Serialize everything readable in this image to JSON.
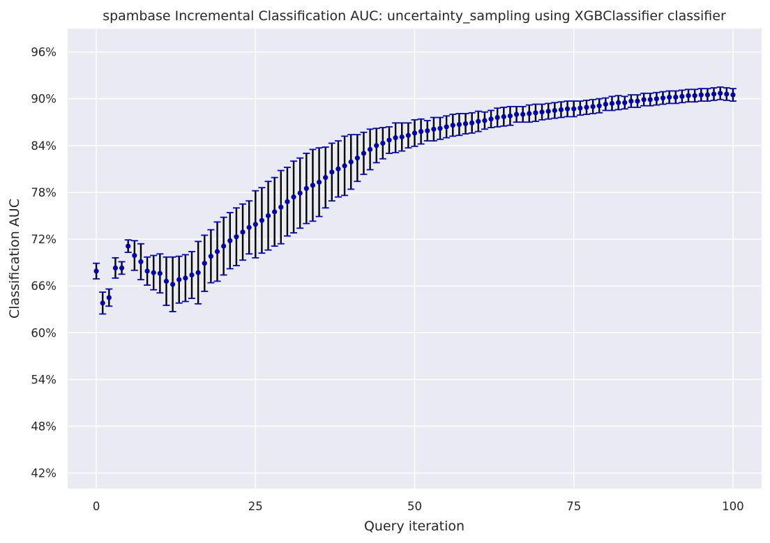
{
  "chart_data": {
    "type": "scatter",
    "title": "spambase Incremental Classification AUC: uncertainty_sampling using XGBClassifier classifier",
    "xlabel": "Query iteration",
    "ylabel": "Classification AUC",
    "xlim": [
      -4.5,
      104.5
    ],
    "ylim": [
      0.4,
      0.99
    ],
    "x_ticks": [
      0,
      25,
      50,
      75,
      100
    ],
    "x_tick_labels": [
      "0",
      "25",
      "50",
      "75",
      "100"
    ],
    "y_ticks": [
      0.42,
      0.48,
      0.54,
      0.6,
      0.66,
      0.72,
      0.78,
      0.84,
      0.9,
      0.96
    ],
    "y_tick_labels": [
      "42%",
      "48%",
      "54%",
      "60%",
      "66%",
      "72%",
      "78%",
      "84%",
      "90%",
      "96%"
    ],
    "grid": true,
    "colors": {
      "background": "#eaeaf2",
      "grid": "#ffffff",
      "marker": "#0000a0",
      "error_bar": "#000000",
      "cap": "#0000c8"
    },
    "series": [
      {
        "x": [
          0,
          1,
          2,
          3,
          4,
          5,
          6,
          7,
          8,
          9,
          10,
          11,
          12,
          13,
          14,
          15,
          16,
          17,
          18,
          19,
          20,
          21,
          22,
          23,
          24,
          25,
          26,
          27,
          28,
          29,
          30,
          31,
          32,
          33,
          34,
          35,
          36,
          37,
          38,
          39,
          40,
          41,
          42,
          43,
          44,
          45,
          46,
          47,
          48,
          49,
          50,
          51,
          52,
          53,
          54,
          55,
          56,
          57,
          58,
          59,
          60,
          61,
          62,
          63,
          64,
          65,
          66,
          67,
          68,
          69,
          70,
          71,
          72,
          73,
          74,
          75,
          76,
          77,
          78,
          79,
          80,
          81,
          82,
          83,
          84,
          85,
          86,
          87,
          88,
          89,
          90,
          91,
          92,
          93,
          94,
          95,
          96,
          97,
          98,
          99,
          100
        ],
        "y": [
          0.679,
          0.638,
          0.645,
          0.683,
          0.683,
          0.711,
          0.699,
          0.691,
          0.679,
          0.677,
          0.676,
          0.666,
          0.662,
          0.668,
          0.67,
          0.674,
          0.677,
          0.689,
          0.698,
          0.704,
          0.711,
          0.718,
          0.723,
          0.729,
          0.735,
          0.739,
          0.744,
          0.75,
          0.755,
          0.761,
          0.768,
          0.774,
          0.779,
          0.785,
          0.789,
          0.793,
          0.799,
          0.806,
          0.81,
          0.814,
          0.819,
          0.824,
          0.83,
          0.835,
          0.84,
          0.843,
          0.847,
          0.85,
          0.851,
          0.853,
          0.856,
          0.858,
          0.859,
          0.861,
          0.862,
          0.864,
          0.866,
          0.867,
          0.868,
          0.869,
          0.871,
          0.872,
          0.874,
          0.876,
          0.877,
          0.878,
          0.88,
          0.88,
          0.881,
          0.882,
          0.883,
          0.884,
          0.885,
          0.886,
          0.887,
          0.887,
          0.888,
          0.889,
          0.89,
          0.891,
          0.893,
          0.894,
          0.895,
          0.895,
          0.897,
          0.897,
          0.899,
          0.899,
          0.9,
          0.901,
          0.902,
          0.902,
          0.903,
          0.904,
          0.904,
          0.905,
          0.905,
          0.906,
          0.907,
          0.906,
          0.905
        ],
        "yerr": [
          0.01,
          0.014,
          0.011,
          0.013,
          0.008,
          0.008,
          0.019,
          0.023,
          0.018,
          0.022,
          0.025,
          0.031,
          0.035,
          0.03,
          0.03,
          0.03,
          0.04,
          0.036,
          0.034,
          0.038,
          0.037,
          0.036,
          0.037,
          0.036,
          0.034,
          0.043,
          0.042,
          0.044,
          0.044,
          0.047,
          0.044,
          0.046,
          0.045,
          0.045,
          0.046,
          0.044,
          0.039,
          0.037,
          0.036,
          0.038,
          0.035,
          0.03,
          0.027,
          0.026,
          0.022,
          0.02,
          0.017,
          0.019,
          0.018,
          0.016,
          0.017,
          0.016,
          0.013,
          0.015,
          0.014,
          0.014,
          0.014,
          0.014,
          0.013,
          0.013,
          0.013,
          0.011,
          0.011,
          0.012,
          0.012,
          0.012,
          0.01,
          0.01,
          0.011,
          0.011,
          0.01,
          0.01,
          0.01,
          0.01,
          0.01,
          0.01,
          0.009,
          0.009,
          0.009,
          0.009,
          0.008,
          0.009,
          0.009,
          0.008,
          0.008,
          0.008,
          0.008,
          0.008,
          0.008,
          0.008,
          0.008,
          0.008,
          0.008,
          0.008,
          0.008,
          0.008,
          0.008,
          0.008,
          0.008,
          0.008,
          0.008
        ]
      }
    ]
  }
}
